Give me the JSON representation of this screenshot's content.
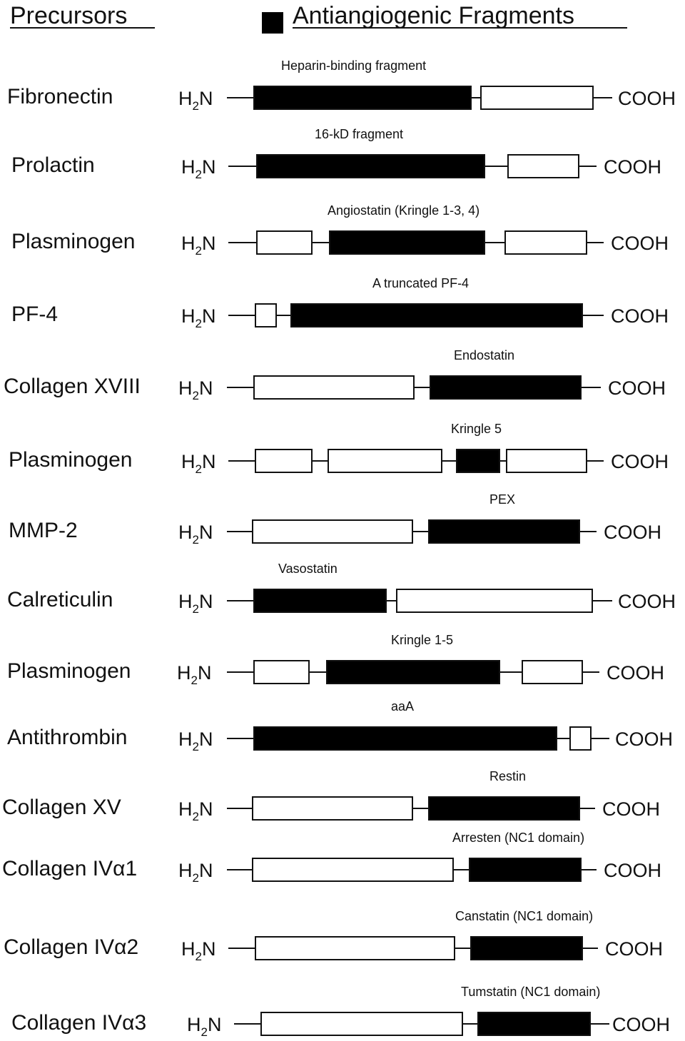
{
  "header": {
    "precursors": "Precursors",
    "fragments": "Antiangiogenic Fragments"
  },
  "terminus": {
    "n_main": "H",
    "n_sub": "2",
    "n_tail": "N",
    "c": "COOH"
  },
  "colors": {
    "fragment": "#000000",
    "domain": "#ffffff",
    "line": "#111111"
  },
  "rows": [
    {
      "precursor": "Fibronectin",
      "fragment": "Heparin-binding fragment",
      "domains": [
        "fragment",
        "other"
      ]
    },
    {
      "precursor": "Prolactin",
      "fragment": "16-kD fragment",
      "domains": [
        "fragment",
        "other"
      ]
    },
    {
      "precursor": "Plasminogen",
      "fragment": "Angiostatin (Kringle 1-3, 4)",
      "domains": [
        "other",
        "fragment",
        "other"
      ]
    },
    {
      "precursor": "PF-4",
      "fragment": "A truncated PF-4",
      "domains": [
        "other",
        "fragment"
      ]
    },
    {
      "precursor": "Collagen XVIII",
      "fragment": "Endostatin",
      "domains": [
        "other",
        "fragment"
      ]
    },
    {
      "precursor": "Plasminogen",
      "fragment": "Kringle 5",
      "domains": [
        "other",
        "other",
        "fragment",
        "other"
      ]
    },
    {
      "precursor": "MMP-2",
      "fragment": "PEX",
      "domains": [
        "other",
        "fragment"
      ]
    },
    {
      "precursor": "Calreticulin",
      "fragment": "Vasostatin",
      "domains": [
        "fragment",
        "other"
      ]
    },
    {
      "precursor": "Plasminogen",
      "fragment": "Kringle 1-5",
      "domains": [
        "other",
        "fragment",
        "other"
      ]
    },
    {
      "precursor": "Antithrombin",
      "fragment": "aaA",
      "domains": [
        "fragment",
        "other"
      ]
    },
    {
      "precursor": "Collagen XV",
      "fragment": "Restin",
      "domains": [
        "other",
        "fragment"
      ]
    },
    {
      "precursor": "Collagen IVα1",
      "fragment": "Arresten (NC1 domain)",
      "domains": [
        "other",
        "fragment"
      ]
    },
    {
      "precursor": "Collagen IVα2",
      "fragment": "Canstatin (NC1 domain)",
      "domains": [
        "other",
        "fragment"
      ]
    },
    {
      "precursor": "Collagen IVα3",
      "fragment": "Tumstatin (NC1 domain)",
      "domains": [
        "other",
        "fragment"
      ]
    }
  ]
}
